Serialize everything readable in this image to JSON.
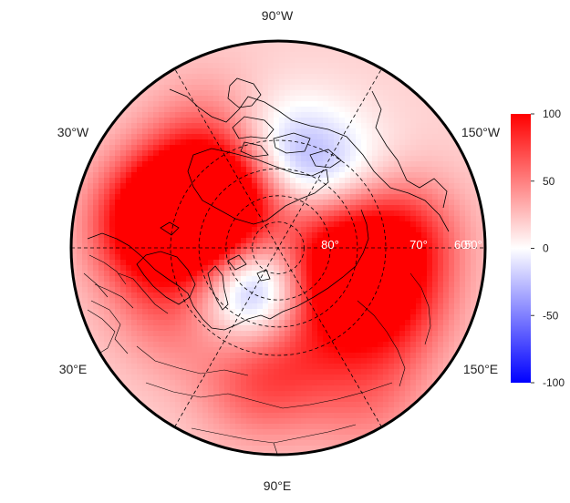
{
  "map": {
    "projection": "polar-stereographic",
    "lon_labels": {
      "top": "90°W",
      "bottom": "90°E",
      "upper_left": "30°W",
      "upper_right": "150°W",
      "lower_left": "30°E",
      "lower_right": "150°E"
    },
    "lat_labels": [
      "80°",
      "70°",
      "60°",
      "50°"
    ],
    "anomaly_blobs": [
      {
        "lon": -45,
        "lat": 60,
        "value": 95
      },
      {
        "lon": -20,
        "lat": 48,
        "value": 90
      },
      {
        "lon": -8,
        "lat": 42,
        "value": 60
      },
      {
        "lon": -30,
        "lat": 67,
        "value": 50
      },
      {
        "lon": -100,
        "lat": 58,
        "value": -40
      },
      {
        "lon": -72,
        "lat": 55,
        "value": -35
      },
      {
        "lon": -135,
        "lat": 55,
        "value": -25
      },
      {
        "lon": 55,
        "lat": 73,
        "value": -65
      },
      {
        "lon": 80,
        "lat": 78,
        "value": -45
      },
      {
        "lon": 165,
        "lat": 75,
        "value": 55
      },
      {
        "lon": 140,
        "lat": 65,
        "value": 50
      },
      {
        "lon": -175,
        "lat": 48,
        "value": 80
      },
      {
        "lon": 150,
        "lat": 45,
        "value": 55
      },
      {
        "lon": 80,
        "lat": 42,
        "value": 45
      },
      {
        "lon": 100,
        "lat": 55,
        "value": 30
      },
      {
        "lon": 30,
        "lat": 45,
        "value": 35
      },
      {
        "lon": 120,
        "lat": 30,
        "value": 30
      },
      {
        "lon": -160,
        "lat": 72,
        "value": 25
      },
      {
        "lon": -60,
        "lat": 40,
        "value": 30
      }
    ]
  },
  "colorbar": {
    "min": -100,
    "max": 100,
    "colors": {
      "low": "#0000ff",
      "mid": "#ffffff",
      "high": "#ff0000"
    },
    "ticks": [
      {
        "value": 100,
        "label": "100"
      },
      {
        "value": 50,
        "label": "50"
      },
      {
        "value": 0,
        "label": "0"
      },
      {
        "value": -50,
        "label": "-50"
      },
      {
        "value": -100,
        "label": "-100"
      }
    ]
  }
}
